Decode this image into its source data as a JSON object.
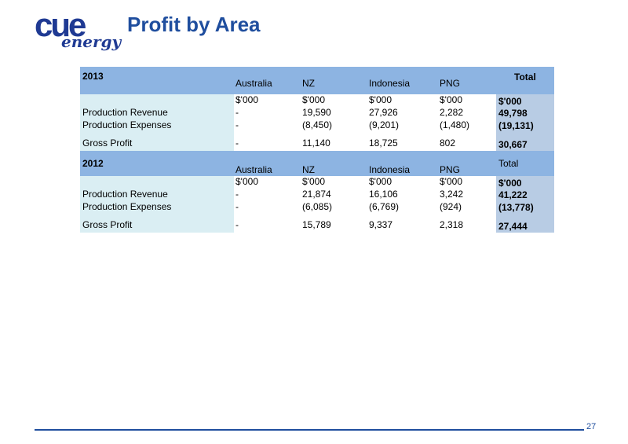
{
  "logo": {
    "wordmark": "cue",
    "subtext": "energy"
  },
  "title": "Profit by Area",
  "sections": [
    {
      "year": "2013",
      "columns": [
        "Australia",
        "NZ",
        "Indonesia",
        "PNG"
      ],
      "total_label": "Total",
      "units": [
        "$'000",
        "$'000",
        "$'000",
        "$'000"
      ],
      "total_unit": "$'000",
      "rows": [
        {
          "label": "Production Revenue",
          "values": [
            "-",
            "19,590",
            "27,926",
            "2,282"
          ],
          "total": "49,798"
        },
        {
          "label": "Production Expenses",
          "values": [
            "-",
            "(8,450)",
            "(9,201)",
            "(1,480)"
          ],
          "total": "(19,131)"
        },
        {
          "label": "Gross Profit",
          "values": [
            "-",
            "11,140",
            "18,725",
            "802"
          ],
          "total": "30,667"
        }
      ]
    },
    {
      "year": "2012",
      "columns": [
        "Australia",
        "NZ",
        "Indonesia",
        "PNG"
      ],
      "total_label": "Total",
      "units": [
        "$'000",
        "$'000",
        "$'000",
        "$'000"
      ],
      "total_unit": "$'000",
      "rows": [
        {
          "label": "Production Revenue",
          "values": [
            "-",
            "21,874",
            "16,106",
            "3,242"
          ],
          "total": "41,222"
        },
        {
          "label": "Production Expenses",
          "values": [
            "-",
            "(6,085)",
            "(6,769)",
            "(924)"
          ],
          "total": "(13,778)"
        },
        {
          "label": "Gross Profit",
          "values": [
            "-",
            "15,789",
            "9,337",
            "2,318"
          ],
          "total": "27,444"
        }
      ]
    }
  ],
  "page_number": "27",
  "colors": {
    "brand_blue": "#1f4e9e",
    "header_band": "#8db4e2",
    "label_column": "#daeef3",
    "total_column": "#b8cce4"
  }
}
